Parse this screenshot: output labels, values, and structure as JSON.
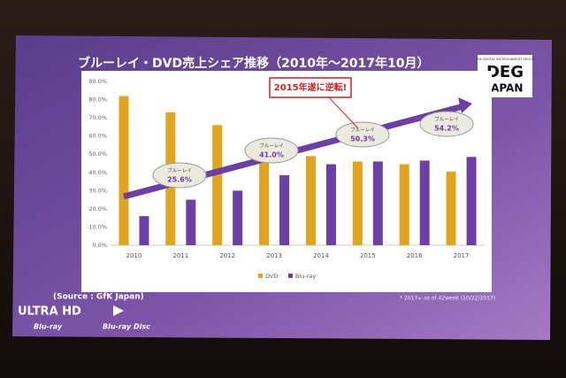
{
  "chart_data": {
    "type": "bar",
    "title": "ブルーレイ・DVD売上シェア推移（2010年～2017年10月）",
    "categories": [
      "2010",
      "2011",
      "2012",
      "2013",
      "2014",
      "2015",
      "2016",
      "2017"
    ],
    "series": [
      {
        "name": "DVD",
        "color": "#e2a31e",
        "values": [
          82,
          73,
          66,
          56,
          49,
          46,
          44.5,
          40.5
        ]
      },
      {
        "name": "Blu-ray",
        "color": "#6b3fa3",
        "values": [
          16,
          25,
          30,
          38.5,
          44.5,
          46,
          46.5,
          48.5
        ]
      }
    ],
    "ylim": [
      0,
      90
    ],
    "yticks": [
      {
        "value": 0,
        "label": "0.0%"
      },
      {
        "value": 10,
        "label": "10.0%"
      },
      {
        "value": 20,
        "label": "20.0%"
      },
      {
        "value": 30,
        "label": "30.0%"
      },
      {
        "value": 40,
        "label": "40.0%"
      },
      {
        "value": 50,
        "label": "50.0%"
      },
      {
        "value": 60,
        "label": "60.0%"
      },
      {
        "value": 70,
        "label": "70.0%"
      },
      {
        "value": 80,
        "label": "80.0%"
      },
      {
        "value": 90,
        "label": "90.0%"
      }
    ],
    "grid": false,
    "annotations": [
      {
        "label": "ブルーレイ",
        "value": "25.6%"
      },
      {
        "label": "ブルーレイ",
        "value": "41.0%"
      },
      {
        "label": "ブルーレイ",
        "value": "50.3%"
      },
      {
        "label": "ブルーレイ",
        "value": "54.2%"
      }
    ],
    "callout": "2015年遂に逆転!"
  },
  "slide": {
    "source": "(Source : GfK Japan)",
    "footnote": "* 2017= as of 42week (10/22/2017)",
    "logo_tagline": "THE DIGITAL ENTERTAINMENT GROUP",
    "logo_top": "DEG",
    "logo_bottom": "JAPAN",
    "uhd_logo": "ULTRA HD",
    "uhd_sub": "Blu-ray",
    "bd_logo": "Blu-ray Disc"
  }
}
